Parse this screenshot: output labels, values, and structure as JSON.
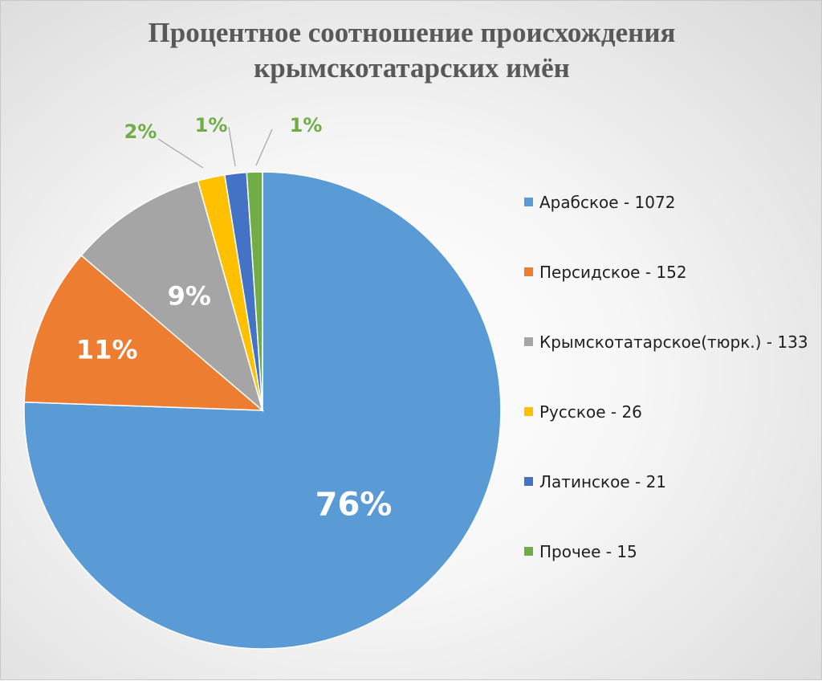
{
  "chart_data": {
    "type": "pie",
    "title_lines": [
      "Процентное соотношение происхождения",
      "крымскотатарских имён"
    ],
    "categories": [
      "Арабское",
      "Персидское",
      "Крымскотатарское(тюрк.)",
      "Русское",
      "Латинское",
      "Прочее"
    ],
    "values": [
      1072,
      152,
      133,
      26,
      21,
      15
    ],
    "legend_labels": [
      "Арабское - 1072",
      "Персидское - 152",
      "Крымскотатарское(тюрк.) - 133",
      "Русское - 26",
      "Латинское - 21",
      "Прочее - 15"
    ],
    "percent_labels": [
      "76%",
      "11%",
      "9%",
      "2%",
      "1%",
      "1%"
    ],
    "colors": [
      "#5b9bd5",
      "#ed7d31",
      "#a5a5a5",
      "#ffc000",
      "#4472c4",
      "#70ad47"
    ],
    "label_colors": [
      "#ffffff",
      "#ffffff",
      "#ffffff",
      "#70ad47",
      "#70ad47",
      "#70ad47"
    ],
    "legend_position": "right",
    "start_angle": "12 o'clock",
    "direction": "clockwise"
  }
}
